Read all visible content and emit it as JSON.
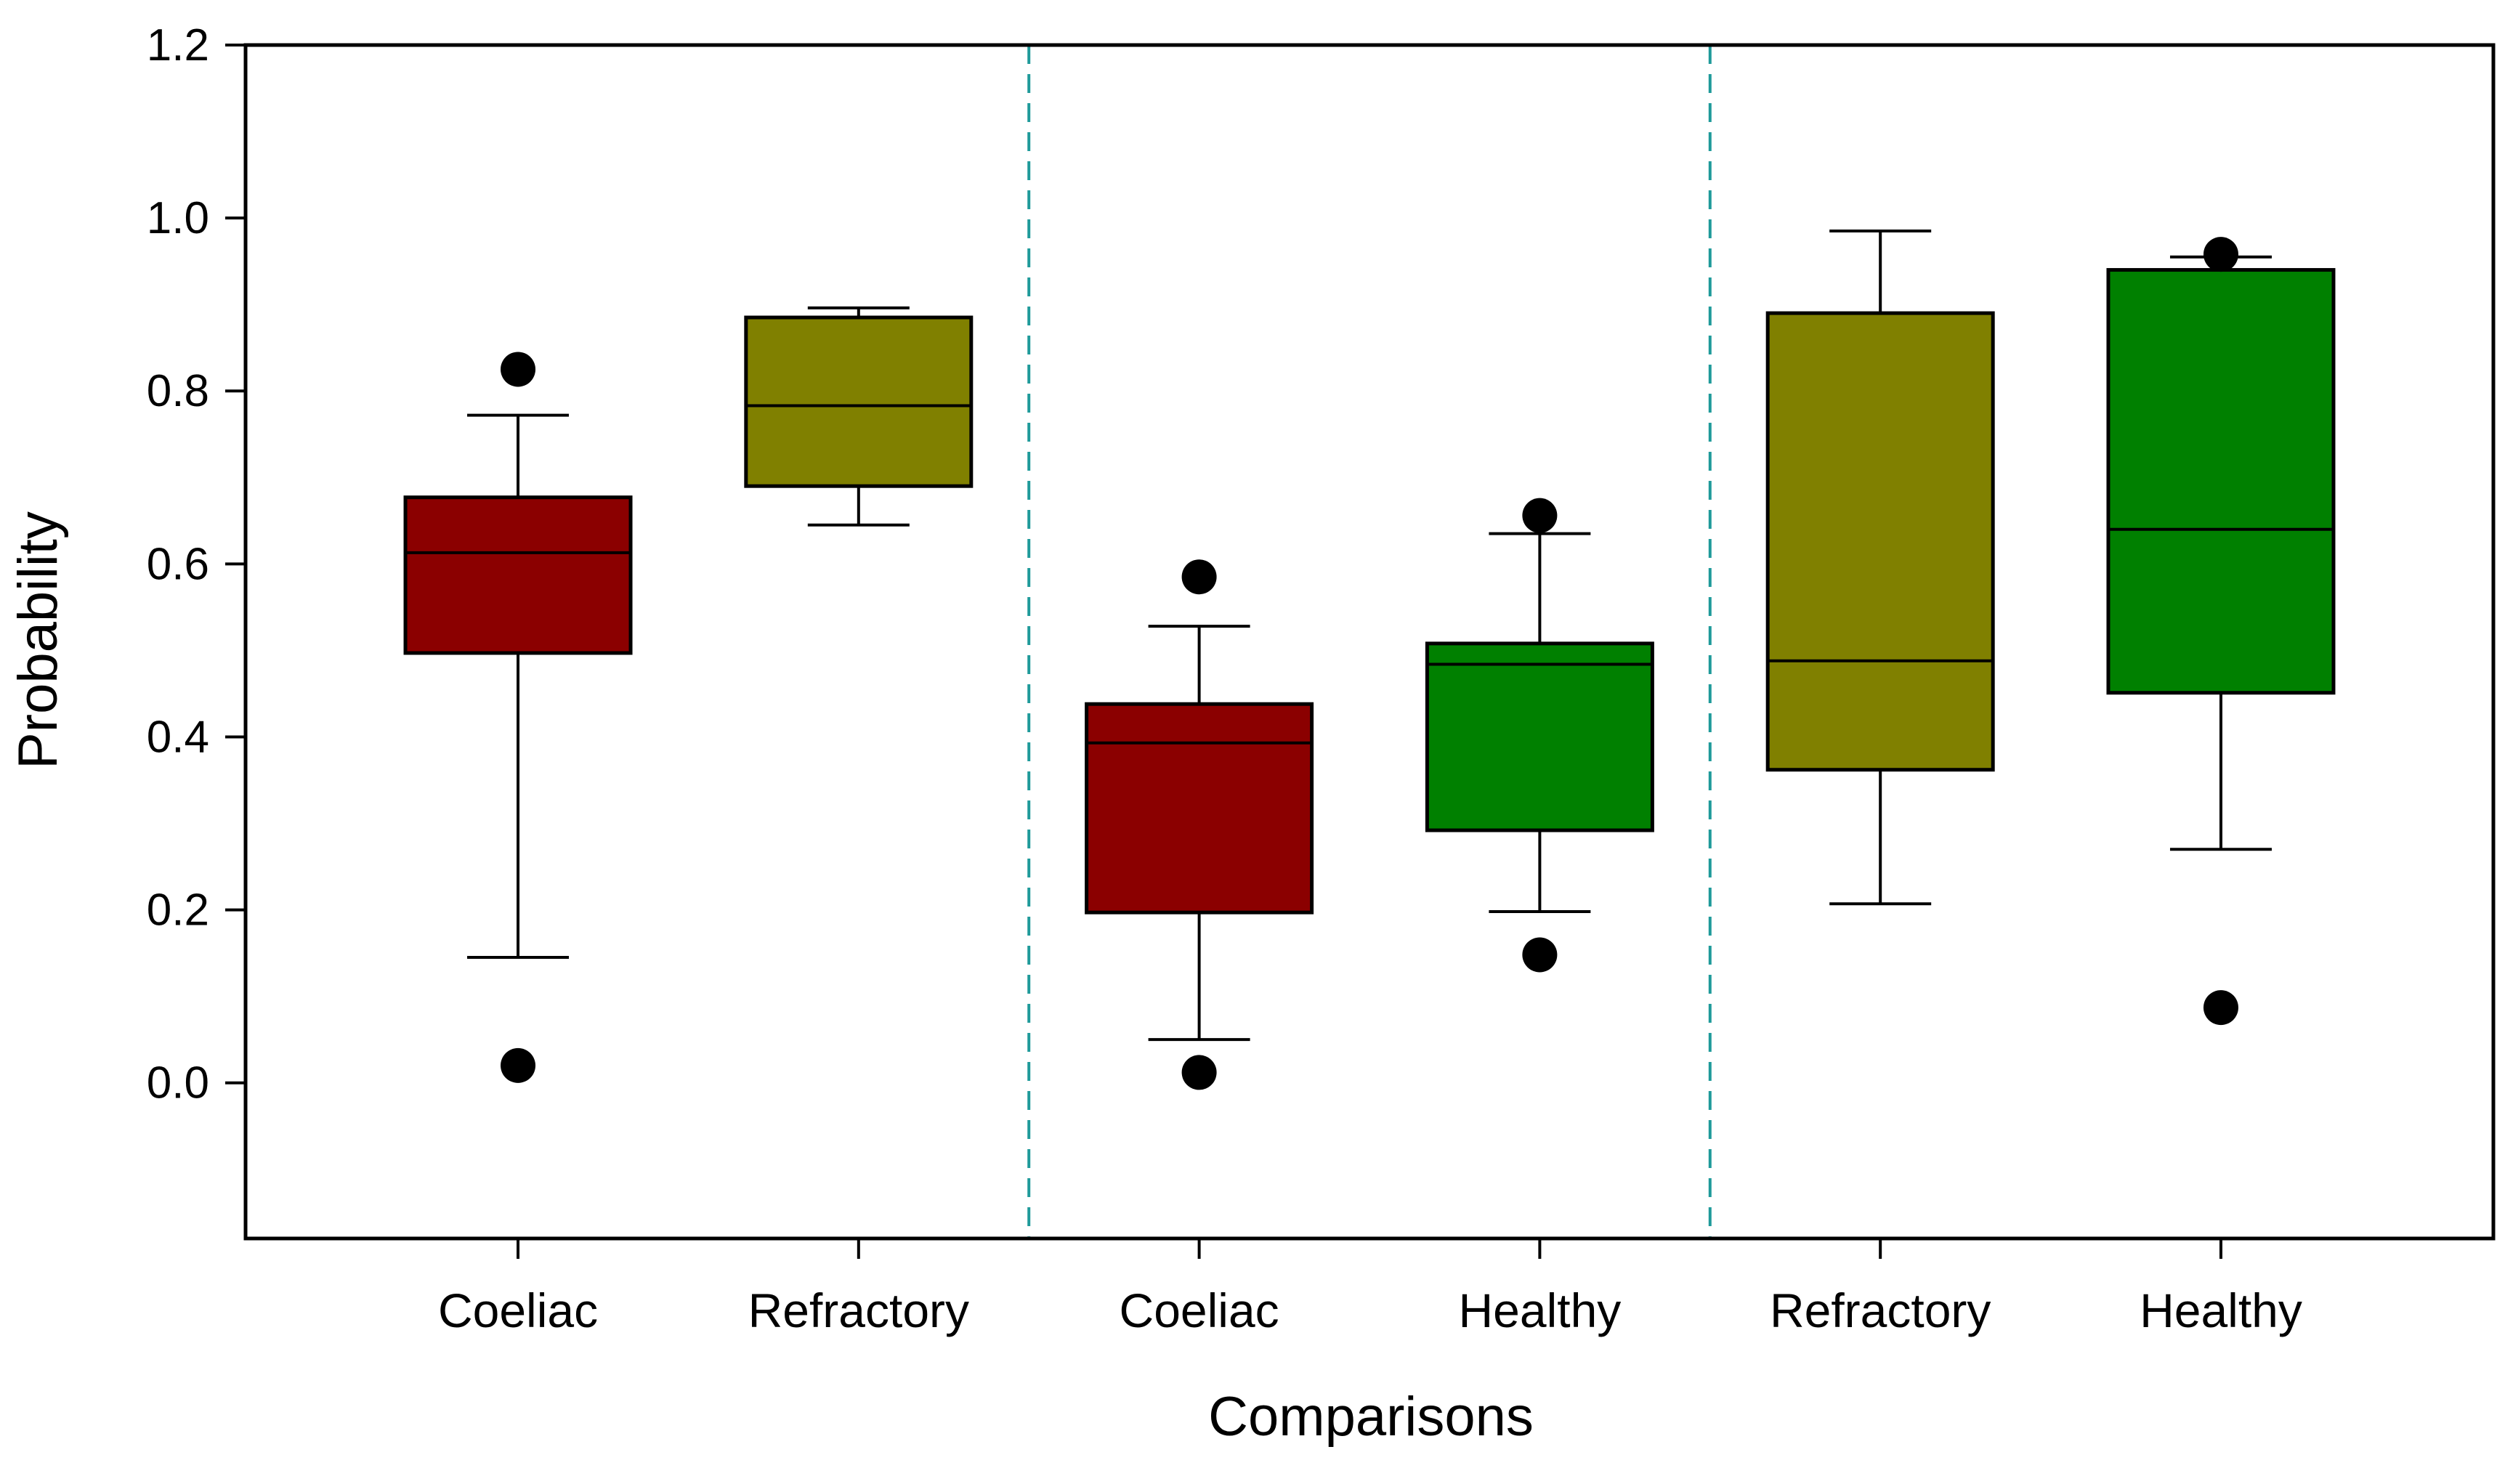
{
  "chart_data": {
    "type": "boxplot",
    "title": "",
    "xlabel": "Comparisons",
    "ylabel": "Probability",
    "ylim": [
      -0.18,
      1.2
    ],
    "yticks": [
      "0.0",
      "0.2",
      "0.4",
      "0.6",
      "0.8",
      "1.0",
      "1.2"
    ],
    "ytick_values": [
      0.0,
      0.2,
      0.4,
      0.6,
      0.8,
      1.0,
      1.2
    ],
    "categories": [
      "Coeliac",
      "Refractory",
      "Coeliac",
      "Healthy",
      "Refractory",
      "Healthy"
    ],
    "group_separators_after": [
      2,
      4
    ],
    "colors": {
      "Coeliac": "#8b0000",
      "Refractory": "#808000",
      "Healthy": "#008000",
      "separator": "#1f9a9a",
      "axis": "#000000"
    },
    "boxes": [
      {
        "label": "Coeliac",
        "whisker_low": 0.145,
        "q1": 0.497,
        "median": 0.613,
        "q3": 0.677,
        "whisker_high": 0.772,
        "outliers": [
          0.825,
          0.02
        ]
      },
      {
        "label": "Refractory",
        "whisker_low": 0.645,
        "q1": 0.69,
        "median": 0.783,
        "q3": 0.885,
        "whisker_high": 0.896,
        "outliers": []
      },
      {
        "label": "Coeliac",
        "whisker_low": 0.05,
        "q1": 0.197,
        "median": 0.393,
        "q3": 0.438,
        "whisker_high": 0.528,
        "outliers": [
          0.585,
          0.012
        ]
      },
      {
        "label": "Healthy",
        "whisker_low": 0.198,
        "q1": 0.292,
        "median": 0.484,
        "q3": 0.508,
        "whisker_high": 0.635,
        "outliers": [
          0.656,
          0.148
        ]
      },
      {
        "label": "Refractory",
        "whisker_low": 0.207,
        "q1": 0.362,
        "median": 0.488,
        "q3": 0.89,
        "whisker_high": 0.985,
        "outliers": []
      },
      {
        "label": "Healthy",
        "whisker_low": 0.27,
        "q1": 0.451,
        "median": 0.64,
        "q3": 0.94,
        "whisker_high": 0.955,
        "outliers": [
          0.958,
          0.087
        ]
      }
    ]
  }
}
